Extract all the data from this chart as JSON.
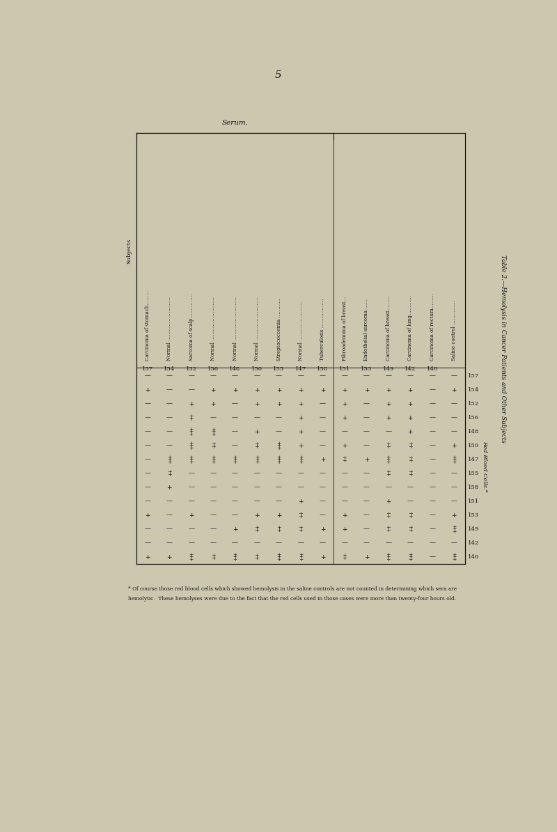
{
  "bg_color": "#ccc8b0",
  "text_color": "#111111",
  "page_number": "5",
  "title": "Table 2.—Hemolysis in Cancer Patients and Other Subjects",
  "rbc_label": "Red Blood Cells.*",
  "serum_label": "Serum.",
  "subjects_label": "Subjects",
  "subjects": [
    "Carcinoma of stomach………",
    "Normal ………………………",
    "Sarcoma of scalp……………",
    "Normal ………………………",
    "Normal ………………………",
    "Normal ………………………",
    "Streptococcemia …………",
    "Normal ……………………",
    "Tuberculosis ………………",
    "Fibroadenoma of breast…",
    "Endothelial sarcoma ……",
    "Carcinoma of breast………",
    "Carcinoma of lung…………",
    "Carcinoma of rectum………",
    "Saline control ……………"
  ],
  "subject_nums": [
    "157",
    "154",
    "152",
    "156",
    "148",
    "150",
    "155",
    "147",
    "158",
    "151",
    "153",
    "149",
    "142",
    "140",
    ""
  ],
  "rbc_rows": [
    "157",
    "154",
    "152",
    "156",
    "148",
    "150",
    "147",
    "155",
    "158",
    "151",
    "153",
    "149",
    "142",
    "140"
  ],
  "serum_bracket_count": 9,
  "table_data": {
    "157": [
      "-",
      "-",
      "-",
      "-",
      "-",
      "-",
      "-",
      "-",
      "-",
      "-",
      "-",
      "-",
      "-",
      "-",
      "-"
    ],
    "154": [
      "+",
      "-",
      "-",
      "+",
      "+",
      "+",
      "+",
      "+",
      "+",
      "+",
      "+",
      "+",
      "+",
      "-",
      "+"
    ],
    "152": [
      "-",
      "-",
      "+",
      "+",
      "-",
      "+",
      "+",
      "+",
      "-",
      "+",
      "-",
      "+",
      "+",
      "-",
      "-"
    ],
    "156": [
      "-",
      "-",
      "++",
      "-",
      "-",
      "-",
      "-",
      "+",
      "-",
      "+",
      "-",
      "+",
      "+",
      "-",
      "-"
    ],
    "148": [
      "-",
      "-",
      "+++",
      "+++",
      "-",
      "+",
      "-",
      "+",
      "-",
      "-",
      "-",
      "-",
      "+",
      "-",
      "-"
    ],
    "150": [
      "-",
      "-",
      "+++",
      "++",
      "-",
      "++",
      "+++",
      "+",
      "-",
      "+",
      "-",
      "++",
      "++",
      "-",
      "+"
    ],
    "147": [
      "-",
      "+++",
      "+++",
      "+++",
      "+++",
      "+++",
      "+++",
      "+++",
      "+",
      "++",
      "+",
      "+++",
      "++",
      "-",
      "+++"
    ],
    "155": [
      "-",
      "++",
      "-",
      "-",
      "-",
      "-",
      "-",
      "-",
      "-",
      "-",
      "-",
      "++",
      "++",
      "-",
      "-"
    ],
    "158": [
      "-",
      "+",
      "-",
      "-",
      "-",
      "-",
      "-",
      "-",
      "-",
      "-",
      "-",
      "-",
      "-",
      "-",
      "-"
    ],
    "151": [
      "-",
      "-",
      "-",
      "-",
      "-",
      "-",
      "-",
      "+",
      "-",
      "-",
      "-",
      "+",
      "-",
      "-",
      "-"
    ],
    "153": [
      "+",
      "-",
      "+",
      "-",
      "-",
      "+",
      "+",
      "++",
      "-",
      "+",
      "-",
      "++",
      "++",
      "-",
      "+"
    ],
    "149": [
      "-",
      "-",
      "-",
      "-",
      "+",
      "++",
      "++",
      "++",
      "+",
      "+",
      "-",
      "++",
      "++",
      "-",
      "+++"
    ],
    "142": [
      "-",
      "-",
      "-",
      "-",
      "-",
      "-",
      "-",
      "-",
      "-",
      "-",
      "-",
      "-",
      "-",
      "-",
      "-"
    ],
    "140": [
      "+",
      "+",
      "+++",
      "++",
      "+++",
      "++",
      "+++",
      "+++",
      "+",
      "++",
      "+",
      "+++",
      "+++",
      "-",
      "+++"
    ]
  },
  "footnote_line1": "* Of course those red blood cells which showed hemolysis in the saline controls are not counted in determining which sera are",
  "footnote_line2": "hemolytic.  These hemolyses were due to the fact that the red cells used in those cases were more than twenty-four hours old."
}
